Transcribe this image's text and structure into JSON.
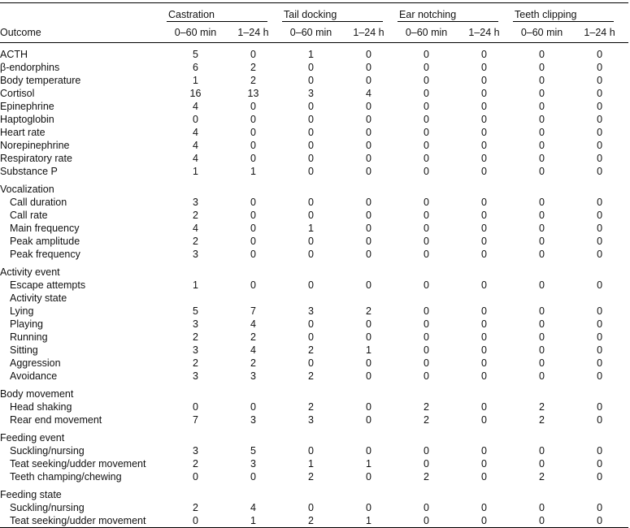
{
  "table": {
    "groups": [
      "Castration",
      "Tail docking",
      "Ear notching",
      "Teeth clipping"
    ],
    "outcome_header": "Outcome",
    "columns": [
      "0–60 min",
      "1–24 h",
      "0–60 min",
      "1–24 h",
      "0–60 min",
      "1–24 h",
      "0–60 min",
      "1–24 h"
    ],
    "sections": [
      {
        "rows": [
          {
            "label": "ACTH",
            "values": [
              5,
              0,
              1,
              0,
              0,
              0,
              0,
              0
            ]
          },
          {
            "label": "β-endorphins",
            "values": [
              6,
              2,
              0,
              0,
              0,
              0,
              0,
              0
            ]
          },
          {
            "label": "Body temperature",
            "values": [
              1,
              2,
              0,
              0,
              0,
              0,
              0,
              0
            ]
          },
          {
            "label": "Cortisol",
            "values": [
              16,
              13,
              3,
              4,
              0,
              0,
              0,
              0
            ]
          },
          {
            "label": "Epinephrine",
            "values": [
              4,
              0,
              0,
              0,
              0,
              0,
              0,
              0
            ]
          },
          {
            "label": "Haptoglobin",
            "values": [
              0,
              0,
              0,
              0,
              0,
              0,
              0,
              0
            ]
          },
          {
            "label": "Heart rate",
            "values": [
              4,
              0,
              0,
              0,
              0,
              0,
              0,
              0
            ]
          },
          {
            "label": "Norepinephrine",
            "values": [
              4,
              0,
              0,
              0,
              0,
              0,
              0,
              0
            ]
          },
          {
            "label": "Respiratory rate",
            "values": [
              4,
              0,
              0,
              0,
              0,
              0,
              0,
              0
            ]
          },
          {
            "label": "Substance P",
            "values": [
              1,
              1,
              0,
              0,
              0,
              0,
              0,
              0
            ]
          }
        ]
      },
      {
        "title": "Vocalization",
        "rows": [
          {
            "label": "Call duration",
            "values": [
              3,
              0,
              0,
              0,
              0,
              0,
              0,
              0
            ]
          },
          {
            "label": "Call rate",
            "values": [
              2,
              0,
              0,
              0,
              0,
              0,
              0,
              0
            ]
          },
          {
            "label": "Main frequency",
            "values": [
              4,
              0,
              1,
              0,
              0,
              0,
              0,
              0
            ]
          },
          {
            "label": "Peak amplitude",
            "values": [
              2,
              0,
              0,
              0,
              0,
              0,
              0,
              0
            ]
          },
          {
            "label": "Peak frequency",
            "values": [
              3,
              0,
              0,
              0,
              0,
              0,
              0,
              0
            ]
          }
        ]
      },
      {
        "title": "Activity event",
        "rows": [
          {
            "label": "Escape attempts",
            "values": [
              1,
              0,
              0,
              0,
              0,
              0,
              0,
              0
            ]
          },
          {
            "label": "Activity state"
          },
          {
            "label": "Lying",
            "values": [
              5,
              7,
              3,
              2,
              0,
              0,
              0,
              0
            ]
          },
          {
            "label": "Playing",
            "values": [
              3,
              4,
              0,
              0,
              0,
              0,
              0,
              0
            ]
          },
          {
            "label": "Running",
            "values": [
              2,
              2,
              0,
              0,
              0,
              0,
              0,
              0
            ]
          },
          {
            "label": "Sitting",
            "values": [
              3,
              4,
              2,
              1,
              0,
              0,
              0,
              0
            ]
          },
          {
            "label": "Aggression",
            "values": [
              2,
              2,
              0,
              0,
              0,
              0,
              0,
              0
            ]
          },
          {
            "label": "Avoidance",
            "values": [
              3,
              3,
              2,
              0,
              0,
              0,
              0,
              0
            ]
          }
        ]
      },
      {
        "title": "Body movement",
        "rows": [
          {
            "label": "Head shaking",
            "values": [
              0,
              0,
              2,
              0,
              2,
              0,
              2,
              0
            ]
          },
          {
            "label": "Rear end movement",
            "values": [
              7,
              3,
              3,
              0,
              2,
              0,
              2,
              0
            ]
          }
        ]
      },
      {
        "title": "Feeding event",
        "rows": [
          {
            "label": "Suckling/nursing",
            "values": [
              3,
              5,
              0,
              0,
              0,
              0,
              0,
              0
            ]
          },
          {
            "label": "Teat seeking/udder movement",
            "values": [
              2,
              3,
              1,
              1,
              0,
              0,
              0,
              0
            ]
          },
          {
            "label": "Teeth champing/chewing",
            "values": [
              0,
              0,
              2,
              0,
              2,
              0,
              2,
              0
            ]
          }
        ]
      },
      {
        "title": "Feeding state",
        "rows": [
          {
            "label": "Suckling/nursing",
            "values": [
              2,
              4,
              0,
              0,
              0,
              0,
              0,
              0
            ]
          },
          {
            "label": "Teat seeking/udder movement",
            "values": [
              0,
              1,
              2,
              1,
              0,
              0,
              0,
              0
            ]
          }
        ]
      }
    ]
  }
}
